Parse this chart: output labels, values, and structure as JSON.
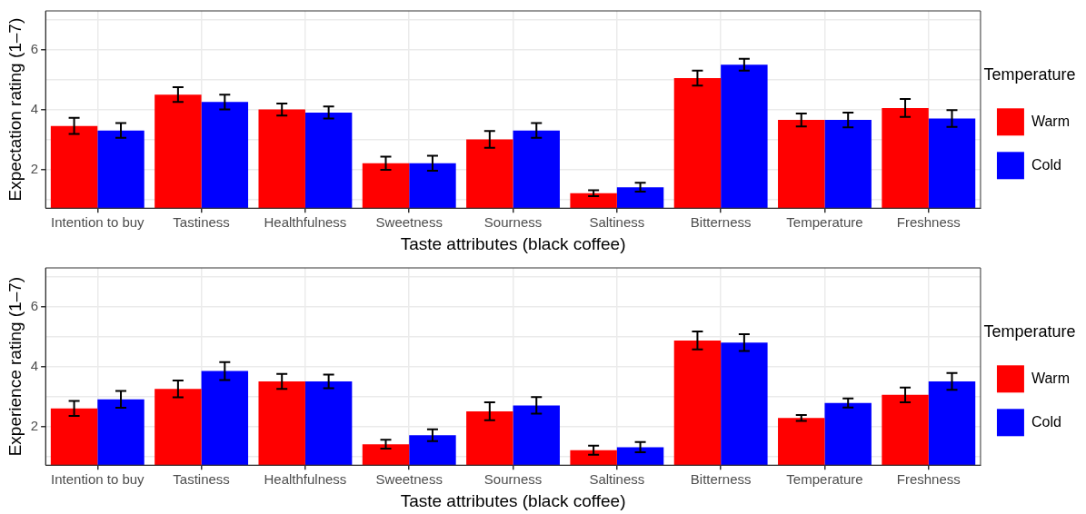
{
  "chart_data": [
    {
      "type": "bar",
      "xlabel": "Taste attributes (black coffee)",
      "ylabel": "Expectation rating (1–7)",
      "legend_title": "Temperature",
      "legend": "right",
      "grid": true,
      "categories": [
        "Intention to buy",
        "Tastiness",
        "Healthfulness",
        "Sweetness",
        "Sourness",
        "Saltiness",
        "Bitterness",
        "Temperature",
        "Freshness"
      ],
      "ylim": [
        0.7,
        7.3
      ],
      "yticks": [
        {
          "value": 1,
          "label": null
        },
        2,
        {
          "value": 3,
          "label": null
        },
        4,
        {
          "value": 5,
          "label": null
        },
        6,
        {
          "value": 7,
          "label": null
        }
      ],
      "series": [
        {
          "name": "Warm",
          "color": "#ff0000",
          "values": [
            3.45,
            4.5,
            4.0,
            2.2,
            3.0,
            1.2,
            5.05,
            3.65,
            4.05
          ],
          "errors": [
            0.27,
            0.25,
            0.2,
            0.22,
            0.28,
            0.1,
            0.25,
            0.22,
            0.3
          ]
        },
        {
          "name": "Cold",
          "color": "#0000ff",
          "values": [
            3.3,
            4.25,
            3.9,
            2.2,
            3.3,
            1.4,
            5.5,
            3.65,
            3.7
          ],
          "errors": [
            0.25,
            0.25,
            0.2,
            0.25,
            0.25,
            0.15,
            0.2,
            0.25,
            0.28
          ]
        }
      ]
    },
    {
      "type": "bar",
      "xlabel": "Taste attributes (black coffee)",
      "ylabel": "Experience rating (1–7)",
      "legend_title": "Temperature",
      "legend": "right",
      "grid": true,
      "categories": [
        "Intention to buy",
        "Tastiness",
        "Healthfulness",
        "Sweetness",
        "Sourness",
        "Saltiness",
        "Bitterness",
        "Temperature",
        "Freshness"
      ],
      "ylim": [
        0.7,
        7.3
      ],
      "yticks": [
        {
          "value": 1,
          "label": null
        },
        2,
        {
          "value": 3,
          "label": null
        },
        4,
        {
          "value": 5,
          "label": null
        },
        6,
        {
          "value": 7,
          "label": null
        }
      ],
      "series": [
        {
          "name": "Warm",
          "color": "#ff0000",
          "values": [
            2.6,
            3.25,
            3.5,
            1.4,
            2.5,
            1.2,
            4.87,
            2.28,
            3.05
          ],
          "errors": [
            0.25,
            0.28,
            0.25,
            0.15,
            0.3,
            0.15,
            0.3,
            0.1,
            0.25
          ]
        },
        {
          "name": "Cold",
          "color": "#0000ff",
          "values": [
            2.9,
            3.85,
            3.5,
            1.7,
            2.7,
            1.3,
            4.8,
            2.78,
            3.5
          ],
          "errors": [
            0.28,
            0.3,
            0.23,
            0.2,
            0.28,
            0.17,
            0.28,
            0.15,
            0.28
          ]
        }
      ]
    }
  ]
}
